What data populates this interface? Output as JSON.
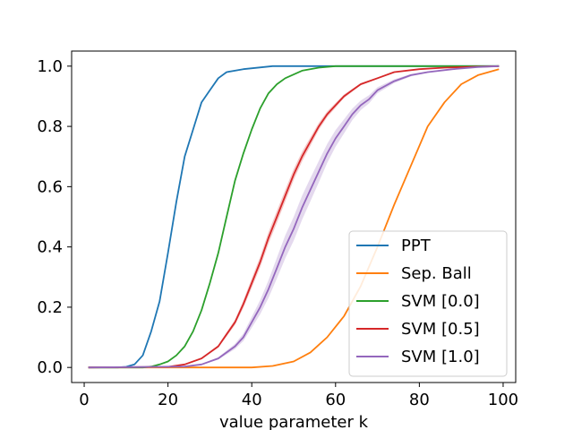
{
  "chart_data": {
    "type": "line",
    "title": "",
    "xlabel": "value parameter k",
    "ylabel": "",
    "xlim": [
      -3,
      103
    ],
    "ylim": [
      -0.05,
      1.05
    ],
    "xticks": [
      0,
      20,
      40,
      60,
      80,
      100
    ],
    "yticks": [
      0.0,
      0.2,
      0.4,
      0.6,
      0.8,
      1.0
    ],
    "xtick_labels": [
      "0",
      "20",
      "40",
      "60",
      "80",
      "100"
    ],
    "ytick_labels": [
      "0.0",
      "0.2",
      "0.4",
      "0.6",
      "0.8",
      "1.0"
    ],
    "grid": false,
    "legend_position": "lower-right",
    "series": [
      {
        "name": "PPT",
        "color": "#1f77b4",
        "band": 0,
        "points": [
          [
            1,
            0
          ],
          [
            8,
            0
          ],
          [
            10,
            0.002
          ],
          [
            12,
            0.01
          ],
          [
            14,
            0.04
          ],
          [
            16,
            0.12
          ],
          [
            18,
            0.22
          ],
          [
            20,
            0.38
          ],
          [
            22,
            0.55
          ],
          [
            24,
            0.7
          ],
          [
            26,
            0.79
          ],
          [
            28,
            0.88
          ],
          [
            30,
            0.92
          ],
          [
            32,
            0.96
          ],
          [
            34,
            0.98
          ],
          [
            38,
            0.99
          ],
          [
            45,
            1.0
          ],
          [
            99,
            1.0
          ]
        ]
      },
      {
        "name": "Sep. Ball",
        "color": "#ff7f0e",
        "band": 0,
        "points": [
          [
            1,
            0
          ],
          [
            40,
            0
          ],
          [
            45,
            0.005
          ],
          [
            50,
            0.02
          ],
          [
            54,
            0.05
          ],
          [
            58,
            0.1
          ],
          [
            62,
            0.17
          ],
          [
            66,
            0.27
          ],
          [
            70,
            0.4
          ],
          [
            74,
            0.54
          ],
          [
            78,
            0.67
          ],
          [
            82,
            0.8
          ],
          [
            86,
            0.88
          ],
          [
            90,
            0.94
          ],
          [
            94,
            0.97
          ],
          [
            99,
            0.99
          ]
        ]
      },
      {
        "name": "SVM [0.0]",
        "color": "#2ca02c",
        "band": 0.01,
        "points": [
          [
            1,
            0
          ],
          [
            14,
            0
          ],
          [
            16,
            0.003
          ],
          [
            18,
            0.01
          ],
          [
            20,
            0.02
          ],
          [
            22,
            0.04
          ],
          [
            24,
            0.07
          ],
          [
            26,
            0.12
          ],
          [
            28,
            0.19
          ],
          [
            30,
            0.28
          ],
          [
            32,
            0.38
          ],
          [
            34,
            0.5
          ],
          [
            36,
            0.62
          ],
          [
            38,
            0.71
          ],
          [
            40,
            0.79
          ],
          [
            42,
            0.86
          ],
          [
            44,
            0.91
          ],
          [
            46,
            0.94
          ],
          [
            48,
            0.96
          ],
          [
            52,
            0.985
          ],
          [
            56,
            0.995
          ],
          [
            60,
            1.0
          ],
          [
            99,
            1.0
          ]
        ]
      },
      {
        "name": "SVM [0.5]",
        "color": "#d62728",
        "band": 0.02,
        "points": [
          [
            1,
            0
          ],
          [
            20,
            0.002
          ],
          [
            24,
            0.01
          ],
          [
            28,
            0.03
          ],
          [
            32,
            0.07
          ],
          [
            34,
            0.11
          ],
          [
            36,
            0.15
          ],
          [
            38,
            0.21
          ],
          [
            40,
            0.28
          ],
          [
            42,
            0.35
          ],
          [
            44,
            0.43
          ],
          [
            46,
            0.5
          ],
          [
            48,
            0.57
          ],
          [
            50,
            0.64
          ],
          [
            52,
            0.7
          ],
          [
            54,
            0.75
          ],
          [
            56,
            0.8
          ],
          [
            58,
            0.84
          ],
          [
            60,
            0.87
          ],
          [
            62,
            0.9
          ],
          [
            64,
            0.92
          ],
          [
            66,
            0.94
          ],
          [
            70,
            0.96
          ],
          [
            74,
            0.98
          ],
          [
            80,
            0.99
          ],
          [
            86,
            0.995
          ],
          [
            99,
            1.0
          ]
        ]
      },
      {
        "name": "SVM [1.0]",
        "color": "#9467bd",
        "band": 0.04,
        "points": [
          [
            1,
            0
          ],
          [
            24,
            0.003
          ],
          [
            28,
            0.01
          ],
          [
            32,
            0.03
          ],
          [
            36,
            0.07
          ],
          [
            38,
            0.1
          ],
          [
            40,
            0.15
          ],
          [
            42,
            0.2
          ],
          [
            44,
            0.26
          ],
          [
            46,
            0.33
          ],
          [
            48,
            0.4
          ],
          [
            50,
            0.46
          ],
          [
            52,
            0.53
          ],
          [
            54,
            0.59
          ],
          [
            56,
            0.65
          ],
          [
            58,
            0.71
          ],
          [
            60,
            0.76
          ],
          [
            62,
            0.8
          ],
          [
            64,
            0.84
          ],
          [
            66,
            0.87
          ],
          [
            68,
            0.89
          ],
          [
            70,
            0.92
          ],
          [
            74,
            0.95
          ],
          [
            78,
            0.97
          ],
          [
            82,
            0.98
          ],
          [
            88,
            0.99
          ],
          [
            94,
            0.997
          ],
          [
            99,
            1.0
          ]
        ]
      }
    ]
  }
}
